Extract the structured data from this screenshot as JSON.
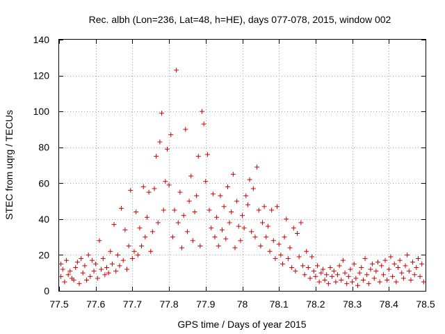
{
  "colors": {
    "points": "#cc0000",
    "grid": "#a0a0a0",
    "axis": "#000000"
  },
  "chart_data": {
    "type": "scatter",
    "title": "Rec. albh (Lon=236, Lat=48, h=HE), days 077-078, 2015, window 002",
    "xlabel": "GPS time / Days of year 2015",
    "ylabel": "STEC from uqrg / TECUs",
    "xlim": [
      77.5,
      78.5
    ],
    "ylim": [
      0,
      140
    ],
    "xticks": [
      77.5,
      77.6,
      77.7,
      77.8,
      77.9,
      78,
      78.1,
      78.2,
      78.3,
      78.4,
      78.5
    ],
    "xtick_labels": [
      "77.5",
      "77.6",
      "77.7",
      "77.8",
      "77.9",
      "78",
      "78.1",
      "78.2",
      "78.3",
      "78.4",
      "78.5"
    ],
    "yticks": [
      0,
      20,
      40,
      60,
      80,
      100,
      120,
      140
    ],
    "ytick_labels": [
      "0",
      "20",
      "40",
      "60",
      "80",
      "100",
      "120",
      "140"
    ],
    "grid": true,
    "marker": "plus",
    "series": [
      {
        "color": "#cc0000",
        "points": [
          [
            77.505,
            15
          ],
          [
            77.505,
            8
          ],
          [
            77.51,
            12
          ],
          [
            77.515,
            5
          ],
          [
            77.52,
            17
          ],
          [
            77.525,
            9
          ],
          [
            77.53,
            11
          ],
          [
            77.535,
            7
          ],
          [
            77.54,
            6
          ],
          [
            77.545,
            13
          ],
          [
            77.55,
            16
          ],
          [
            77.555,
            4
          ],
          [
            77.56,
            18
          ],
          [
            77.565,
            10
          ],
          [
            77.57,
            14
          ],
          [
            77.575,
            6
          ],
          [
            77.58,
            20
          ],
          [
            77.585,
            8
          ],
          [
            77.59,
            17
          ],
          [
            77.595,
            11
          ],
          [
            77.6,
            15
          ],
          [
            77.605,
            7
          ],
          [
            77.61,
            28
          ],
          [
            77.615,
            12
          ],
          [
            77.62,
            18
          ],
          [
            77.625,
            9
          ],
          [
            77.63,
            13
          ],
          [
            77.635,
            10
          ],
          [
            77.64,
            22
          ],
          [
            77.645,
            15
          ],
          [
            77.65,
            37
          ],
          [
            77.655,
            11
          ],
          [
            77.66,
            20
          ],
          [
            77.665,
            14
          ],
          [
            77.67,
            46
          ],
          [
            77.675,
            17
          ],
          [
            77.68,
            34
          ],
          [
            77.685,
            12
          ],
          [
            77.69,
            25
          ],
          [
            77.695,
            56
          ],
          [
            77.7,
            18
          ],
          [
            77.705,
            22
          ],
          [
            77.71,
            44
          ],
          [
            77.715,
            20
          ],
          [
            77.72,
            35
          ],
          [
            77.725,
            25
          ],
          [
            77.73,
            58
          ],
          [
            77.735,
            30
          ],
          [
            77.74,
            41
          ],
          [
            77.745,
            55
          ],
          [
            77.75,
            22
          ],
          [
            77.755,
            33
          ],
          [
            77.76,
            57
          ],
          [
            77.765,
            75
          ],
          [
            77.77,
            38
          ],
          [
            77.775,
            83
          ],
          [
            77.78,
            99
          ],
          [
            77.785,
            45
          ],
          [
            77.79,
            61
          ],
          [
            77.795,
            79
          ],
          [
            77.8,
            59
          ],
          [
            77.805,
            87
          ],
          [
            77.81,
            30
          ],
          [
            77.815,
            45
          ],
          [
            77.82,
            123
          ],
          [
            77.825,
            38
          ],
          [
            77.83,
            55
          ],
          [
            77.835,
            24
          ],
          [
            77.84,
            42
          ],
          [
            77.845,
            90
          ],
          [
            77.85,
            33
          ],
          [
            77.855,
            50
          ],
          [
            77.86,
            64
          ],
          [
            77.865,
            28
          ],
          [
            77.87,
            44
          ],
          [
            77.875,
            53
          ],
          [
            77.88,
            75
          ],
          [
            77.885,
            25
          ],
          [
            77.89,
            100
          ],
          [
            77.895,
            93
          ],
          [
            77.9,
            61
          ],
          [
            77.905,
            76
          ],
          [
            77.91,
            45
          ],
          [
            77.915,
            35
          ],
          [
            77.92,
            54
          ],
          [
            77.925,
            30
          ],
          [
            77.93,
            41
          ],
          [
            77.935,
            25
          ],
          [
            77.94,
            53
          ],
          [
            77.945,
            34
          ],
          [
            77.95,
            47
          ],
          [
            77.955,
            29
          ],
          [
            77.96,
            58
          ],
          [
            77.965,
            38
          ],
          [
            77.97,
            44
          ],
          [
            77.975,
            65
          ],
          [
            77.98,
            24
          ],
          [
            77.985,
            50
          ],
          [
            77.99,
            36
          ],
          [
            77.995,
            28
          ],
          [
            78.0,
            42
          ],
          [
            78.005,
            35
          ],
          [
            78.01,
            53
          ],
          [
            78.015,
            48
          ],
          [
            78.02,
            62
          ],
          [
            78.025,
            33
          ],
          [
            78.03,
            57
          ],
          [
            78.035,
            30
          ],
          [
            78.04,
            69
          ],
          [
            78.045,
            45
          ],
          [
            78.05,
            25
          ],
          [
            78.055,
            38
          ],
          [
            78.06,
            47
          ],
          [
            78.065,
            30
          ],
          [
            78.07,
            36
          ],
          [
            78.075,
            22
          ],
          [
            78.08,
            45
          ],
          [
            78.085,
            28
          ],
          [
            78.09,
            18
          ],
          [
            78.095,
            47
          ],
          [
            78.1,
            26
          ],
          [
            78.105,
            20
          ],
          [
            78.11,
            15
          ],
          [
            78.115,
            30
          ],
          [
            78.12,
            40
          ],
          [
            78.125,
            18
          ],
          [
            78.13,
            24
          ],
          [
            78.135,
            13
          ],
          [
            78.14,
            35
          ],
          [
            78.145,
            11
          ],
          [
            78.15,
            32
          ],
          [
            78.155,
            19
          ],
          [
            78.16,
            38
          ],
          [
            78.165,
            14
          ],
          [
            78.17,
            9
          ],
          [
            78.175,
            22
          ],
          [
            78.18,
            13
          ],
          [
            78.185,
            7
          ],
          [
            78.19,
            19
          ],
          [
            78.195,
            11
          ],
          [
            78.2,
            8
          ],
          [
            78.205,
            14
          ],
          [
            78.21,
            5
          ],
          [
            78.215,
            10
          ],
          [
            78.22,
            12
          ],
          [
            78.225,
            6
          ],
          [
            78.23,
            9
          ],
          [
            78.235,
            4
          ],
          [
            78.24,
            13
          ],
          [
            78.245,
            8
          ],
          [
            78.25,
            11
          ],
          [
            78.255,
            5
          ],
          [
            78.26,
            9
          ],
          [
            78.265,
            14
          ],
          [
            78.27,
            6
          ],
          [
            78.275,
            17
          ],
          [
            78.28,
            10
          ],
          [
            78.285,
            4
          ],
          [
            78.29,
            8
          ],
          [
            78.295,
            12
          ],
          [
            78.3,
            5
          ],
          [
            78.305,
            15
          ],
          [
            78.31,
            7
          ],
          [
            78.315,
            3
          ],
          [
            78.32,
            10
          ],
          [
            78.325,
            13
          ],
          [
            78.33,
            6
          ],
          [
            78.335,
            18
          ],
          [
            78.34,
            9
          ],
          [
            78.345,
            4
          ],
          [
            78.35,
            12
          ],
          [
            78.355,
            15
          ],
          [
            78.36,
            7
          ],
          [
            78.365,
            11
          ],
          [
            78.37,
            16
          ],
          [
            78.375,
            5
          ],
          [
            78.38,
            14
          ],
          [
            78.385,
            9
          ],
          [
            78.39,
            17
          ],
          [
            78.395,
            6
          ],
          [
            78.4,
            12
          ],
          [
            78.405,
            19
          ],
          [
            78.41,
            8
          ],
          [
            78.415,
            15
          ],
          [
            78.42,
            5
          ],
          [
            78.425,
            13
          ],
          [
            78.43,
            17
          ],
          [
            78.435,
            10
          ],
          [
            78.44,
            7
          ],
          [
            78.445,
            14
          ],
          [
            78.45,
            20
          ],
          [
            78.455,
            11
          ],
          [
            78.46,
            6
          ],
          [
            78.465,
            16
          ],
          [
            78.47,
            9
          ],
          [
            78.475,
            13
          ],
          [
            78.48,
            18
          ],
          [
            78.485,
            8
          ],
          [
            78.49,
            15
          ],
          [
            78.495,
            5
          ]
        ]
      }
    ]
  }
}
